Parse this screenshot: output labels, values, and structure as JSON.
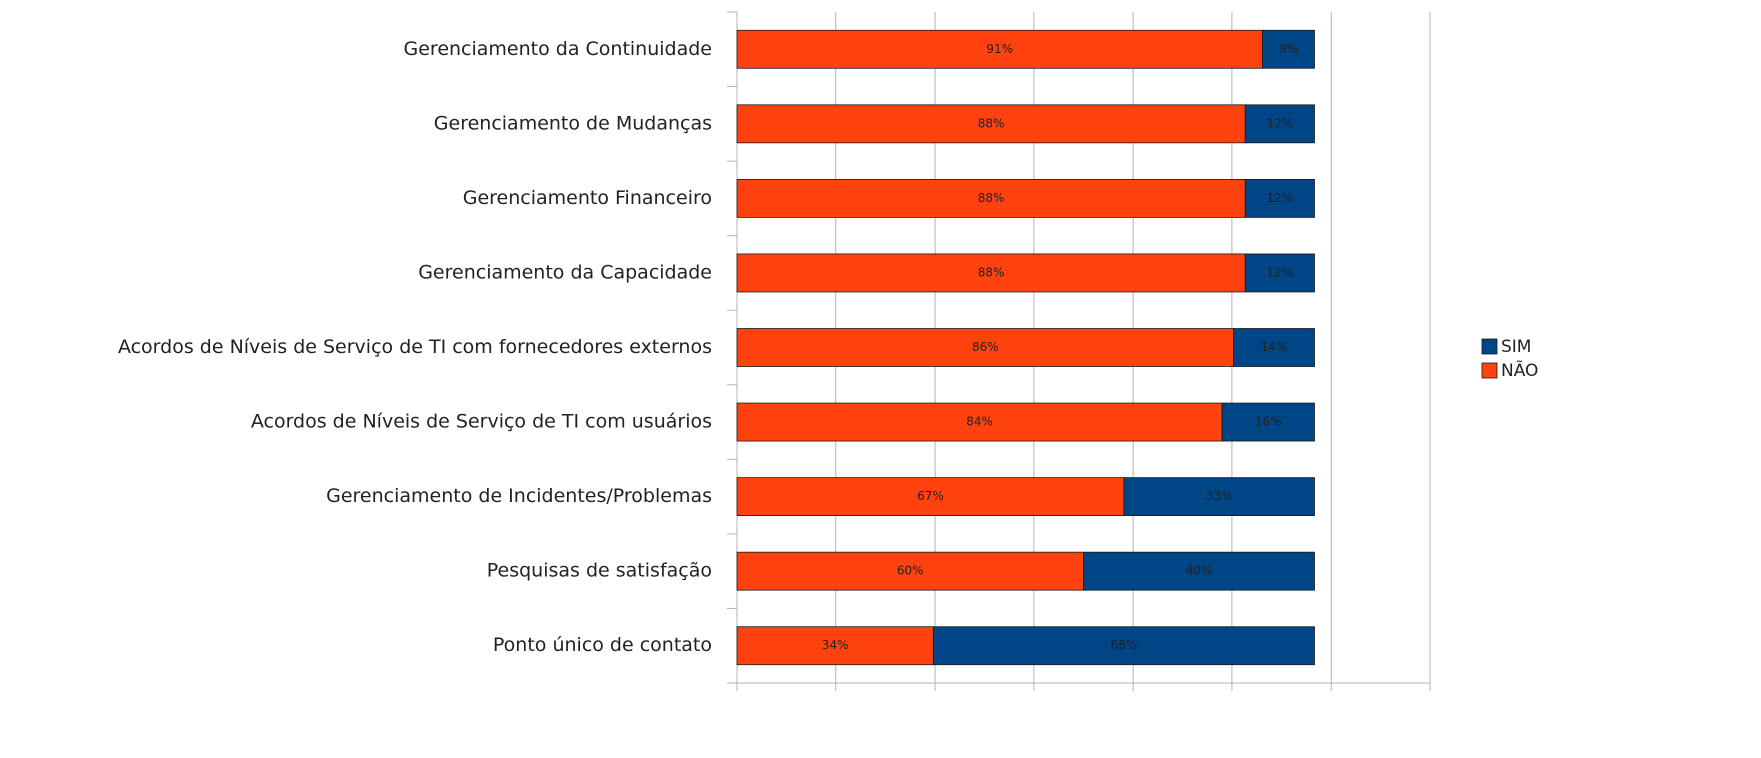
{
  "chart_data": {
    "type": "bar",
    "orientation": "horizontal",
    "stacked": true,
    "categories": [
      "Gerenciamento da Continuidade",
      "Gerenciamento de Mudanças",
      "Gerenciamento Financeiro",
      "Gerenciamento da Capacidade",
      "Acordos de Níveis de Serviço de TI com fornecedores externos",
      "Acordos de Níveis de Serviço de TI com usuários",
      "Gerenciamento de Incidentes/Problemas",
      "Pesquisas de satisfação",
      "Ponto único de contato"
    ],
    "series": [
      {
        "name": "NÃO",
        "color": "#ff420e",
        "values": [
          91,
          88,
          88,
          88,
          86,
          84,
          67,
          60,
          34
        ],
        "value_labels": [
          "91%",
          "88%",
          "88%",
          "88%",
          "86%",
          "84%",
          "67%",
          "60%",
          "34%"
        ]
      },
      {
        "name": "SIM",
        "color": "#004586",
        "values": [
          9,
          12,
          12,
          12,
          14,
          16,
          33,
          40,
          66
        ],
        "value_labels": [
          "9%",
          "12%",
          "12%",
          "12%",
          "14%",
          "16%",
          "33%",
          "40%",
          "66%"
        ]
      }
    ],
    "xlim": [
      0,
      120
    ],
    "xticks": [
      0,
      17.1,
      34.3,
      51.4,
      68.6,
      85.7,
      102.9,
      120
    ],
    "grid": true,
    "legend": "right"
  }
}
